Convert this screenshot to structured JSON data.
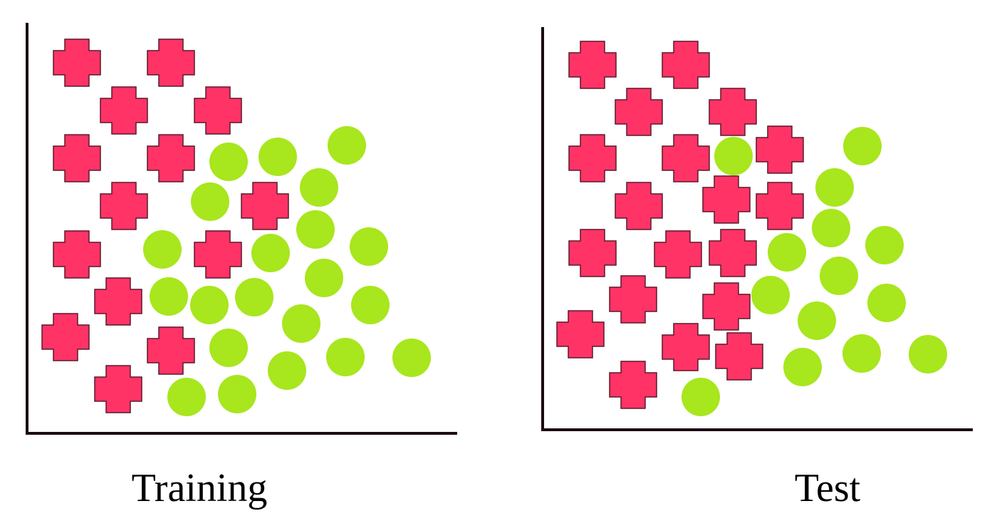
{
  "panels": [
    {
      "label": "Training"
    },
    {
      "label": "Test"
    }
  ]
}
